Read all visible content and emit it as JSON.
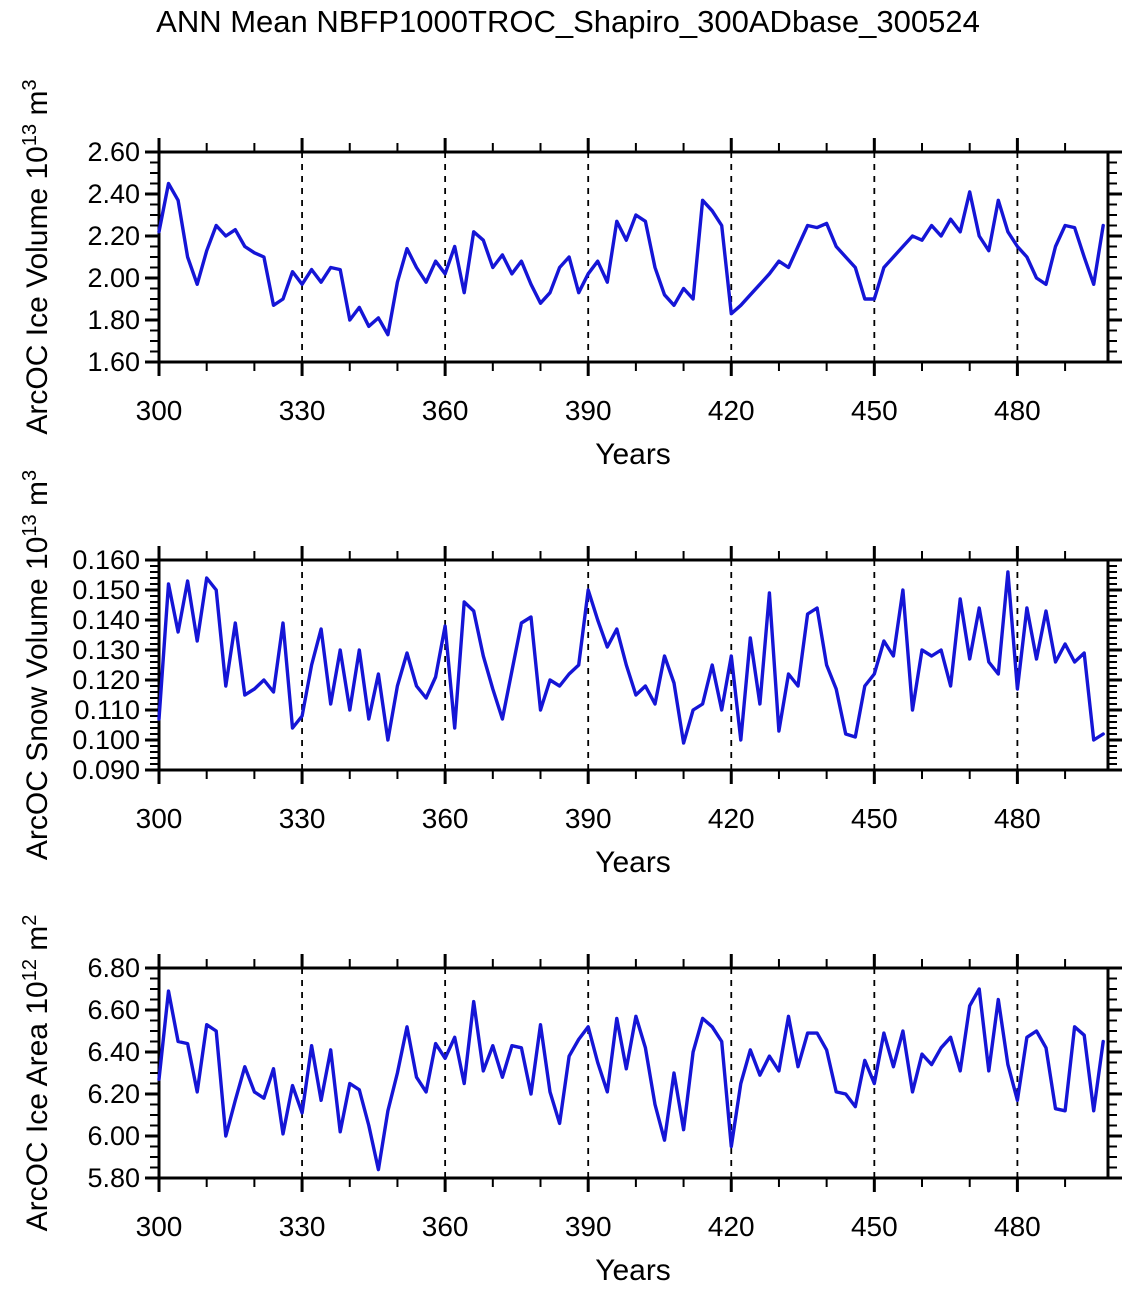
{
  "title": "ANN Mean NBFP1000TROC_Shapiro_300ADbase_300524",
  "colors": {
    "line": "#1515d6",
    "axis": "#000000",
    "background": "#ffffff"
  },
  "chart_data": {
    "type": "line",
    "x": {
      "label": "Years",
      "min": 300,
      "max": 499,
      "major_ticks": [
        300,
        330,
        360,
        390,
        420,
        450,
        480
      ],
      "minor_tick_step": 10,
      "gridlines": [
        330,
        360,
        390,
        420,
        450,
        480
      ],
      "years": [
        300,
        302,
        304,
        306,
        308,
        310,
        312,
        314,
        316,
        318,
        320,
        322,
        324,
        326,
        328,
        330,
        332,
        334,
        336,
        338,
        340,
        342,
        344,
        346,
        348,
        350,
        352,
        354,
        356,
        358,
        360,
        362,
        364,
        366,
        368,
        370,
        372,
        374,
        376,
        378,
        380,
        382,
        384,
        386,
        388,
        390,
        392,
        394,
        396,
        398,
        400,
        402,
        404,
        406,
        408,
        410,
        412,
        414,
        416,
        418,
        420,
        422,
        424,
        426,
        428,
        430,
        432,
        434,
        436,
        438,
        440,
        442,
        444,
        446,
        448,
        450,
        452,
        454,
        456,
        458,
        460,
        462,
        464,
        466,
        468,
        470,
        472,
        474,
        476,
        478,
        480,
        482,
        484,
        486,
        488,
        490,
        492,
        494,
        496,
        498
      ]
    },
    "panels": [
      {
        "id": "ice-volume",
        "ylabel_prefix": "ArcOC Ice Volume 10",
        "ylabel_exp": "13",
        "ylabel_unit": " m",
        "ylabel_unit_exp": "3",
        "ymin": 1.6,
        "ymax": 2.6,
        "ytick_labels": [
          "2.60",
          "2.40",
          "2.20",
          "2.00",
          "1.80",
          "1.60"
        ],
        "minor_tick_step": 0.05,
        "values": [
          2.22,
          2.45,
          2.37,
          2.1,
          1.97,
          2.13,
          2.25,
          2.2,
          2.23,
          2.15,
          2.12,
          2.1,
          1.87,
          1.9,
          2.03,
          1.97,
          2.04,
          1.98,
          2.05,
          2.04,
          1.8,
          1.86,
          1.77,
          1.81,
          1.73,
          1.98,
          2.14,
          2.05,
          1.98,
          2.08,
          2.02,
          2.15,
          1.93,
          2.22,
          2.18,
          2.05,
          2.11,
          2.02,
          2.08,
          1.97,
          1.88,
          1.93,
          2.05,
          2.1,
          1.93,
          2.02,
          2.08,
          1.98,
          2.27,
          2.18,
          2.3,
          2.27,
          2.05,
          1.92,
          1.87,
          1.95,
          1.9,
          2.37,
          2.32,
          2.25,
          1.83,
          1.87,
          1.92,
          1.97,
          2.02,
          2.08,
          2.05,
          2.15,
          2.25,
          2.24,
          2.26,
          2.15,
          2.1,
          2.05,
          1.9,
          1.9,
          2.05,
          2.1,
          2.15,
          2.2,
          2.18,
          2.25,
          2.2,
          2.28,
          2.22,
          2.41,
          2.2,
          2.13,
          2.37,
          2.22,
          2.15,
          2.1,
          2.0,
          1.97,
          2.15,
          2.25,
          2.24,
          2.1,
          1.97,
          2.25
        ]
      },
      {
        "id": "snow-volume",
        "ylabel_prefix": "ArcOC Snow Volume 10",
        "ylabel_exp": "13",
        "ylabel_unit": " m",
        "ylabel_unit_exp": "3",
        "ymin": 0.09,
        "ymax": 0.16,
        "ytick_labels": [
          "0.160",
          "0.150",
          "0.140",
          "0.130",
          "0.120",
          "0.110",
          "0.100",
          "0.090"
        ],
        "minor_tick_step": 0.002,
        "values": [
          0.107,
          0.152,
          0.136,
          0.153,
          0.133,
          0.154,
          0.15,
          0.118,
          0.139,
          0.115,
          0.117,
          0.12,
          0.116,
          0.139,
          0.104,
          0.108,
          0.125,
          0.137,
          0.112,
          0.13,
          0.11,
          0.13,
          0.107,
          0.122,
          0.1,
          0.118,
          0.129,
          0.118,
          0.114,
          0.121,
          0.138,
          0.104,
          0.146,
          0.143,
          0.128,
          0.117,
          0.107,
          0.123,
          0.139,
          0.141,
          0.11,
          0.12,
          0.118,
          0.122,
          0.125,
          0.15,
          0.14,
          0.131,
          0.137,
          0.125,
          0.115,
          0.118,
          0.112,
          0.128,
          0.119,
          0.099,
          0.11,
          0.112,
          0.125,
          0.11,
          0.128,
          0.1,
          0.134,
          0.112,
          0.149,
          0.103,
          0.122,
          0.118,
          0.142,
          0.144,
          0.125,
          0.117,
          0.102,
          0.101,
          0.118,
          0.122,
          0.133,
          0.128,
          0.15,
          0.11,
          0.13,
          0.128,
          0.13,
          0.118,
          0.147,
          0.127,
          0.144,
          0.126,
          0.122,
          0.156,
          0.117,
          0.144,
          0.127,
          0.143,
          0.126,
          0.132,
          0.126,
          0.129,
          0.1,
          0.102
        ]
      },
      {
        "id": "ice-area",
        "ylabel_prefix": "ArcOC Ice Area 10",
        "ylabel_exp": "12",
        "ylabel_unit": " m",
        "ylabel_unit_exp": "2",
        "ymin": 5.8,
        "ymax": 6.8,
        "ytick_labels": [
          "6.80",
          "6.60",
          "6.40",
          "6.20",
          "6.00",
          "5.80"
        ],
        "minor_tick_step": 0.05,
        "values": [
          6.27,
          6.69,
          6.45,
          6.44,
          6.21,
          6.53,
          6.5,
          6.0,
          6.17,
          6.33,
          6.21,
          6.18,
          6.32,
          6.01,
          6.24,
          6.11,
          6.43,
          6.17,
          6.41,
          6.02,
          6.25,
          6.22,
          6.05,
          5.84,
          6.12,
          6.3,
          6.52,
          6.28,
          6.21,
          6.44,
          6.37,
          6.47,
          6.25,
          6.64,
          6.31,
          6.43,
          6.28,
          6.43,
          6.42,
          6.2,
          6.53,
          6.21,
          6.06,
          6.38,
          6.46,
          6.52,
          6.35,
          6.21,
          6.56,
          6.32,
          6.57,
          6.42,
          6.15,
          5.98,
          6.3,
          6.03,
          6.4,
          6.56,
          6.52,
          6.45,
          5.95,
          6.25,
          6.41,
          6.29,
          6.38,
          6.31,
          6.57,
          6.33,
          6.49,
          6.49,
          6.41,
          6.21,
          6.2,
          6.14,
          6.36,
          6.25,
          6.49,
          6.33,
          6.5,
          6.21,
          6.39,
          6.34,
          6.42,
          6.47,
          6.31,
          6.62,
          6.7,
          6.31,
          6.65,
          6.34,
          6.17,
          6.47,
          6.5,
          6.42,
          6.13,
          6.12,
          6.52,
          6.48,
          6.12,
          6.45
        ]
      }
    ]
  }
}
